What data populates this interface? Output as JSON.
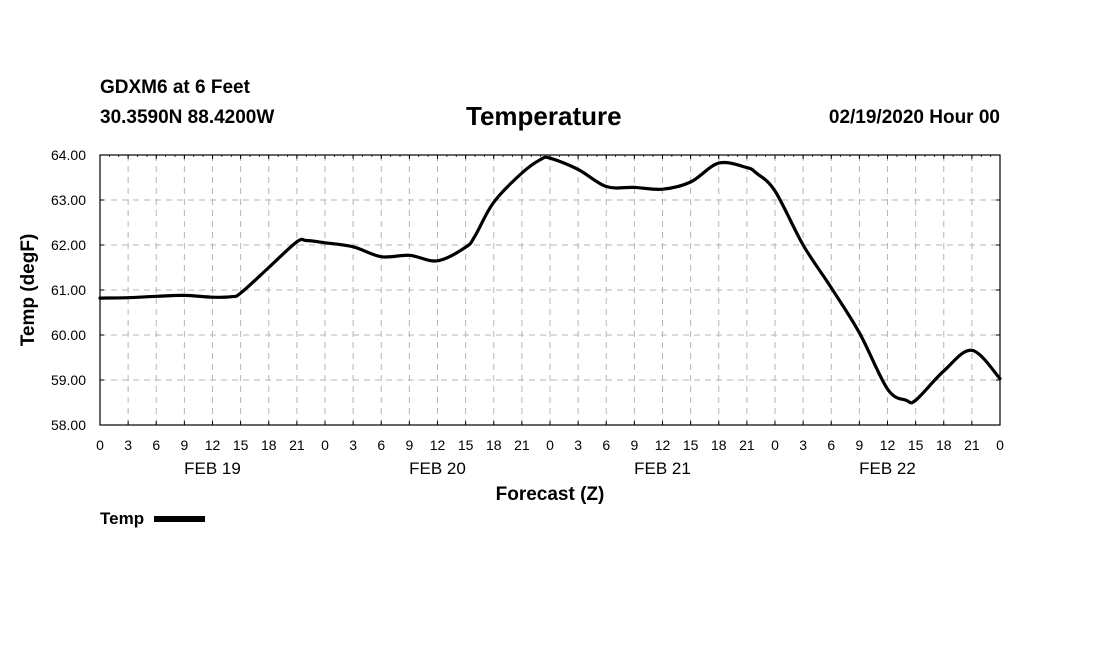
{
  "header": {
    "station": "GDXM6 at 6 Feet",
    "coords": "30.3590N 88.4200W",
    "title": "Temperature",
    "run_time": "02/19/2020 Hour 00"
  },
  "legend": {
    "label": "Temp"
  },
  "chart_data": {
    "type": "line",
    "title": "Temperature",
    "xlabel": "Forecast (Z)",
    "ylabel": "Temp (degF)",
    "ylim": [
      58,
      64
    ],
    "xlim_hours": [
      0,
      96
    ],
    "grid": true,
    "legend_position": "bottom-left",
    "y_ticks": [
      "58.00",
      "59.00",
      "60.00",
      "61.00",
      "62.00",
      "63.00",
      "64.00"
    ],
    "x_tick_labels": [
      "0",
      "3",
      "6",
      "9",
      "12",
      "15",
      "18",
      "21",
      "0",
      "3",
      "6",
      "9",
      "12",
      "15",
      "18",
      "21",
      "0",
      "3",
      "6",
      "9",
      "12",
      "15",
      "18",
      "21",
      "0",
      "3",
      "6",
      "9",
      "12",
      "15",
      "18",
      "21",
      "0"
    ],
    "day_labels": [
      {
        "label": "FEB 19",
        "hour": 12
      },
      {
        "label": "FEB 20",
        "hour": 36
      },
      {
        "label": "FEB 21",
        "hour": 60
      },
      {
        "label": "FEB 22",
        "hour": 84
      }
    ],
    "series": [
      {
        "name": "Temp",
        "color": "#000000",
        "x": [
          0,
          3,
          6,
          9,
          12,
          14,
          15,
          18,
          21,
          22,
          24,
          27,
          30,
          33,
          36,
          39,
          40,
          42,
          45,
          47,
          48,
          51,
          54,
          57,
          60,
          63,
          66,
          69,
          70,
          72,
          75,
          78,
          81,
          84,
          86,
          87,
          90,
          93,
          96
        ],
        "values": [
          60.82,
          60.83,
          60.86,
          60.88,
          60.84,
          60.85,
          60.93,
          61.5,
          62.07,
          62.1,
          62.05,
          61.96,
          61.74,
          61.77,
          61.65,
          61.95,
          62.2,
          62.95,
          63.6,
          63.9,
          63.93,
          63.68,
          63.3,
          63.28,
          63.24,
          63.4,
          63.82,
          63.72,
          63.6,
          63.2,
          62.0,
          61.05,
          60.05,
          58.8,
          58.55,
          58.55,
          59.2,
          59.66,
          59.03
        ]
      }
    ]
  }
}
